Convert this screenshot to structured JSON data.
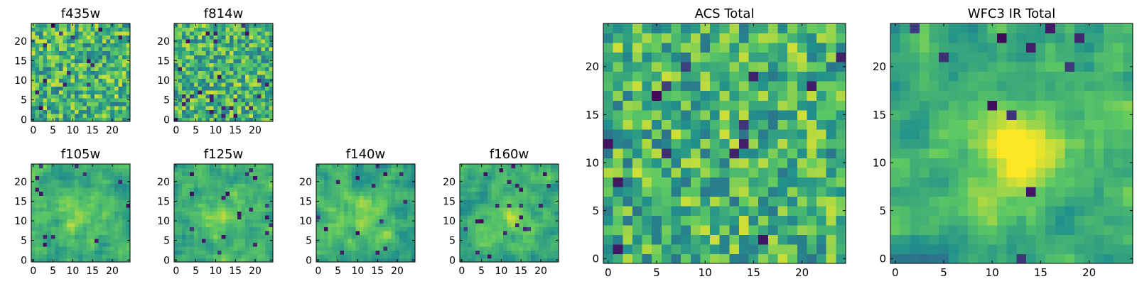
{
  "figure": {
    "background": "#ffffff",
    "colormap": "viridis",
    "colormap_stops": [
      "#440154",
      "#3b528b",
      "#21918c",
      "#5ec962",
      "#fde725"
    ]
  },
  "chart_data": [
    {
      "type": "heatmap",
      "title": "f435w",
      "grid_size": [
        25,
        25
      ],
      "xlim": [
        -0.5,
        24.5
      ],
      "ylim": [
        -0.5,
        24.5
      ],
      "xticks": [
        0,
        5,
        10,
        15,
        20
      ],
      "yticks": [
        0,
        5,
        10,
        15,
        20
      ],
      "xtick_labels": [
        "0",
        "5",
        "10",
        "15",
        "20"
      ],
      "ytick_labels": [
        "0",
        "5",
        "10",
        "15",
        "20"
      ],
      "grid": false,
      "texture": "noisy",
      "seed": 11
    },
    {
      "type": "heatmap",
      "title": "f814w",
      "grid_size": [
        25,
        25
      ],
      "xlim": [
        -0.5,
        24.5
      ],
      "ylim": [
        -0.5,
        24.5
      ],
      "xticks": [
        0,
        5,
        10,
        15,
        20
      ],
      "yticks": [
        0,
        5,
        10,
        15,
        20
      ],
      "xtick_labels": [
        "0",
        "5",
        "10",
        "15",
        "20"
      ],
      "ytick_labels": [
        "0",
        "5",
        "10",
        "15",
        "20"
      ],
      "grid": false,
      "texture": "noisy",
      "seed": 23
    },
    {
      "type": "heatmap",
      "title": "f105w",
      "grid_size": [
        25,
        25
      ],
      "xlim": [
        -0.5,
        24.5
      ],
      "ylim": [
        -0.5,
        24.5
      ],
      "xticks": [
        0,
        5,
        10,
        15,
        20
      ],
      "yticks": [
        0,
        5,
        10,
        15,
        20
      ],
      "xtick_labels": [
        "0",
        "5",
        "10",
        "15",
        "20"
      ],
      "ytick_labels": [
        "0",
        "5",
        "10",
        "15",
        "20"
      ],
      "grid": false,
      "texture": "smooth",
      "seed": 37
    },
    {
      "type": "heatmap",
      "title": "f125w",
      "grid_size": [
        25,
        25
      ],
      "xlim": [
        -0.5,
        24.5
      ],
      "ylim": [
        -0.5,
        24.5
      ],
      "xticks": [
        0,
        5,
        10,
        15,
        20
      ],
      "yticks": [
        0,
        5,
        10,
        15,
        20
      ],
      "xtick_labels": [
        "0",
        "5",
        "10",
        "15",
        "20"
      ],
      "ytick_labels": [
        "0",
        "5",
        "10",
        "15",
        "20"
      ],
      "grid": false,
      "texture": "smooth",
      "seed": 41
    },
    {
      "type": "heatmap",
      "title": "f140w",
      "grid_size": [
        25,
        25
      ],
      "xlim": [
        -0.5,
        24.5
      ],
      "ylim": [
        -0.5,
        24.5
      ],
      "xticks": [
        0,
        5,
        10,
        15,
        20
      ],
      "yticks": [
        0,
        5,
        10,
        15,
        20
      ],
      "xtick_labels": [
        "0",
        "5",
        "10",
        "15",
        "20"
      ],
      "ytick_labels": [
        "0",
        "5",
        "10",
        "15",
        "20"
      ],
      "grid": false,
      "texture": "smooth",
      "seed": 53
    },
    {
      "type": "heatmap",
      "title": "f160w",
      "grid_size": [
        25,
        25
      ],
      "xlim": [
        -0.5,
        24.5
      ],
      "ylim": [
        -0.5,
        24.5
      ],
      "xticks": [
        0,
        5,
        10,
        15,
        20
      ],
      "yticks": [
        0,
        5,
        10,
        15,
        20
      ],
      "xtick_labels": [
        "0",
        "5",
        "10",
        "15",
        "20"
      ],
      "ytick_labels": [
        "0",
        "5",
        "10",
        "15",
        "20"
      ],
      "grid": false,
      "texture": "smooth",
      "seed": 67
    },
    {
      "type": "heatmap",
      "title": "ACS Total",
      "grid_size": [
        25,
        25
      ],
      "xlim": [
        -0.5,
        24.5
      ],
      "ylim": [
        -0.5,
        24.5
      ],
      "xticks": [
        0,
        5,
        10,
        15,
        20
      ],
      "yticks": [
        0,
        5,
        10,
        15,
        20
      ],
      "xtick_labels": [
        "0",
        "5",
        "10",
        "15",
        "20"
      ],
      "ytick_labels": [
        "0",
        "5",
        "10",
        "15",
        "20"
      ],
      "grid": false,
      "texture": "noisy",
      "seed": 79
    },
    {
      "type": "heatmap",
      "title": "WFC3 IR Total",
      "grid_size": [
        25,
        25
      ],
      "xlim": [
        -0.5,
        24.5
      ],
      "ylim": [
        -0.5,
        24.5
      ],
      "xticks": [
        0,
        5,
        10,
        15,
        20
      ],
      "yticks": [
        0,
        5,
        10,
        15,
        20
      ],
      "xtick_labels": [
        "0",
        "5",
        "10",
        "15",
        "20"
      ],
      "ytick_labels": [
        "0",
        "5",
        "10",
        "15",
        "20"
      ],
      "grid": false,
      "texture": "peaked",
      "seed": 97
    }
  ]
}
